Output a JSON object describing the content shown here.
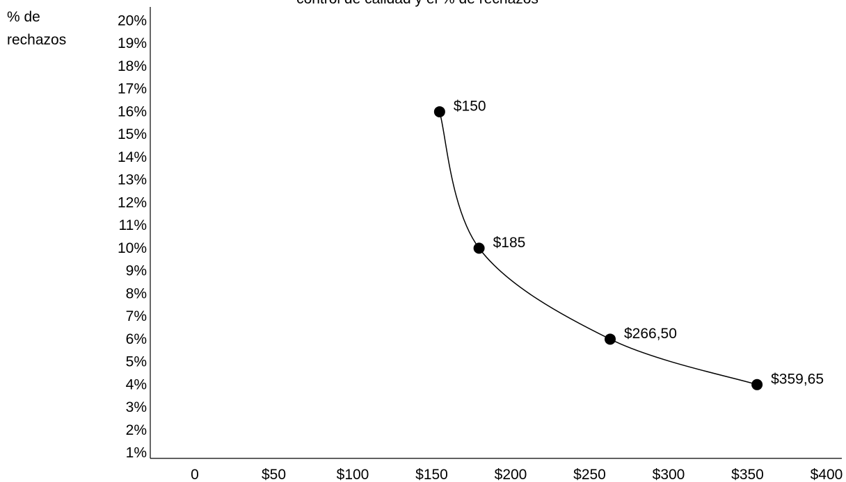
{
  "chart_data": {
    "type": "line",
    "title": "control de calidad y el % de rechazos",
    "ylabel_lines": [
      "% de",
      "rechazos"
    ],
    "xlabel": "",
    "x_ticks": [
      "0",
      "$50",
      "$100",
      "$150",
      "$200",
      "$250",
      "$300",
      "$350",
      "$400"
    ],
    "y_ticks": [
      "1%",
      "2%",
      "3%",
      "4%",
      "5%",
      "6%",
      "7%",
      "8%",
      "9%",
      "10%",
      "11%",
      "12%",
      "13%",
      "14%",
      "15%",
      "16%",
      "17%",
      "18%",
      "19%",
      "20%"
    ],
    "xlim": [
      0,
      400
    ],
    "ylim": [
      1,
      20
    ],
    "grid": false,
    "series": [
      {
        "points": [
          {
            "x": 155,
            "y": 16,
            "label": "$150"
          },
          {
            "x": 180,
            "y": 10,
            "label": "$185"
          },
          {
            "x": 263,
            "y": 6,
            "label": "$266,50"
          },
          {
            "x": 356,
            "y": 4,
            "label": "$359,65"
          }
        ]
      }
    ]
  }
}
